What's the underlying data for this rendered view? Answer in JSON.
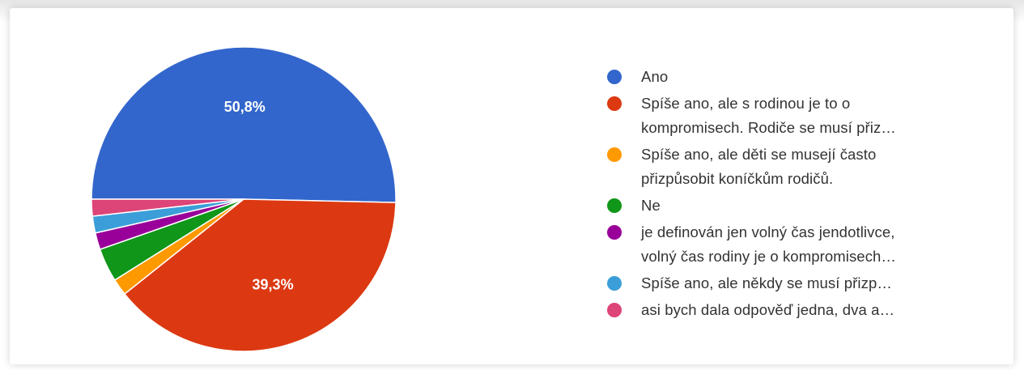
{
  "chart_data": {
    "type": "pie",
    "slices": [
      {
        "label": "Ano",
        "value": 50.8,
        "data_label": "50,8%",
        "color": "#3366cc"
      },
      {
        "label": "Spíše ano, ale s rodinou je to o\nkompromisech. Rodiče se musí přiz…",
        "value": 39.3,
        "data_label": "39,3%",
        "color": "#dc3912"
      },
      {
        "label": "Spíše ano, ale děti se musejí často\npřizpůsobit koníčkům rodičů.",
        "value": 1.8,
        "data_label": "",
        "color": "#ff9900"
      },
      {
        "label": "Ne",
        "value": 3.6,
        "data_label": "",
        "color": "#109618"
      },
      {
        "label": "je definován jen volný čas jendotlivce,\nvolný čas rodiny je o kompromisech…",
        "value": 1.8,
        "data_label": "",
        "color": "#990099"
      },
      {
        "label": "Spíše ano, ale někdy se musí přizp…",
        "value": 1.8,
        "data_label": "",
        "color": "#3b9ed8"
      },
      {
        "label": "asi bych dala odpověď jedna, dva a…",
        "value": 1.8,
        "data_label": "",
        "color": "#dd4477"
      }
    ],
    "start_angle": "9 o'clock",
    "direction": "clockwise",
    "legend_position": "right"
  }
}
